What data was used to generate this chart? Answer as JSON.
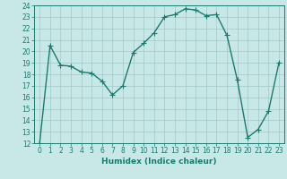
{
  "xlabel": "Humidex (Indice chaleur)",
  "ylabel": "",
  "x": [
    0,
    1,
    2,
    3,
    4,
    5,
    6,
    7,
    8,
    9,
    10,
    11,
    12,
    13,
    14,
    15,
    16,
    17,
    18,
    19,
    20,
    21,
    22,
    23
  ],
  "y": [
    12,
    20.5,
    18.8,
    18.7,
    18.2,
    18.1,
    17.4,
    16.2,
    17.0,
    19.9,
    20.7,
    21.6,
    23.0,
    23.2,
    23.7,
    23.6,
    23.1,
    23.2,
    21.4,
    17.5,
    12.5,
    13.2,
    14.8,
    19.0
  ],
  "line_color": "#1a7a6e",
  "bg_color": "#c8e8e8",
  "grid_color": "#a0c8c8",
  "ylim": [
    12,
    24
  ],
  "xlim_min": -0.5,
  "xlim_max": 23.5,
  "yticks": [
    12,
    13,
    14,
    15,
    16,
    17,
    18,
    19,
    20,
    21,
    22,
    23,
    24
  ],
  "xticks": [
    0,
    1,
    2,
    3,
    4,
    5,
    6,
    7,
    8,
    9,
    10,
    11,
    12,
    13,
    14,
    15,
    16,
    17,
    18,
    19,
    20,
    21,
    22,
    23
  ],
  "marker": "+",
  "marker_size": 4,
  "linewidth": 1.0,
  "xlabel_fontsize": 6.5,
  "tick_fontsize": 5.5
}
